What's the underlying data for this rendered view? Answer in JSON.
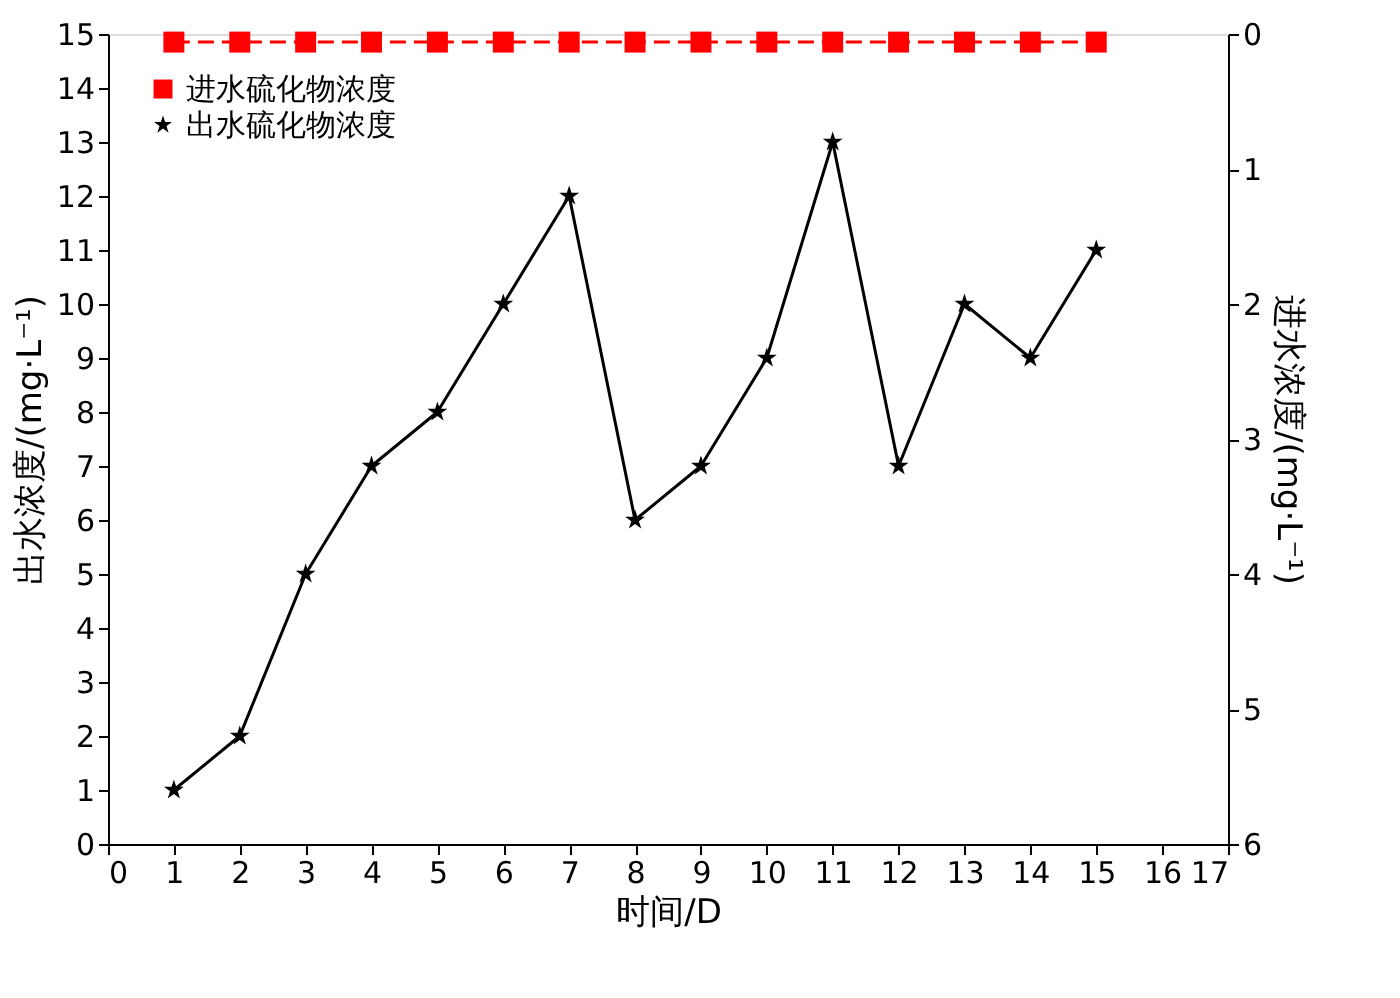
{
  "chart_data": {
    "type": "line",
    "xlabel": "时间/D",
    "ylabel": "出水浓度/(mg·L⁻¹)",
    "y2label": "进水浓度/(mg·L⁻¹)",
    "x": [
      1,
      2,
      3,
      4,
      5,
      6,
      7,
      8,
      9,
      10,
      11,
      12,
      13,
      14,
      15
    ],
    "xlim": [
      0,
      17
    ],
    "xticks": [
      0,
      1,
      2,
      3,
      4,
      5,
      6,
      7,
      8,
      9,
      10,
      11,
      12,
      13,
      14,
      15,
      16,
      17
    ],
    "ylim": [
      0,
      15
    ],
    "yticks": [
      0,
      1,
      2,
      3,
      4,
      5,
      6,
      7,
      8,
      9,
      10,
      11,
      12,
      13,
      14,
      15
    ],
    "y2lim": [
      6,
      0
    ],
    "y2ticks": [
      0,
      1,
      2,
      3,
      4,
      5,
      6
    ],
    "grid": false,
    "legend": "top left",
    "series": [
      {
        "name": "进水硫化物浓度",
        "color": "#ff0000",
        "axis": "y2",
        "marker": "square",
        "line_style": "dashed",
        "values": [
          0.06,
          0.06,
          0.06,
          0.06,
          0.06,
          0.06,
          0.06,
          0.06,
          0.06,
          0.06,
          0.06,
          0.06,
          0.06,
          0.06,
          0.06
        ]
      },
      {
        "name": "出水硫化物浓度",
        "color": "#000000",
        "axis": "y",
        "marker": "star",
        "line_style": "solid",
        "values": [
          1,
          2,
          5,
          7,
          8,
          10,
          12,
          6,
          7,
          9,
          13,
          7,
          10,
          9,
          11
        ]
      }
    ]
  }
}
